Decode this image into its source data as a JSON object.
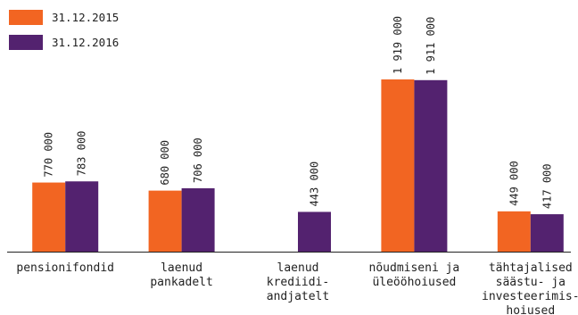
{
  "colors": {
    "series_2015": "#f26522",
    "series_2016": "#53226f",
    "text": "#222222",
    "axis": "#222222"
  },
  "legend": [
    {
      "label": "31.12.2015",
      "color": "#f26522"
    },
    {
      "label": "31.12.2016",
      "color": "#53226f"
    }
  ],
  "chart_data": {
    "type": "bar",
    "categories": [
      [
        "pensionifondid"
      ],
      [
        "laenud",
        "pankadelt"
      ],
      [
        "laenud",
        "krediidi-",
        "andjatelt"
      ],
      [
        "nõudmiseni ja",
        "üleööhoiused"
      ],
      [
        "tähtajalised",
        "säästu- ja",
        "investeerimis-",
        "hoiused"
      ]
    ],
    "series": [
      {
        "name": "31.12.2015",
        "values": [
          770000,
          680000,
          null,
          1919000,
          449000
        ],
        "labels": [
          "770 000",
          "680 000",
          "",
          "1 919 000",
          "449 000"
        ]
      },
      {
        "name": "31.12.2016",
        "values": [
          783000,
          706000,
          443000,
          1911000,
          417000
        ],
        "labels": [
          "783 000",
          "706 000",
          "443 000",
          "1 911 000",
          "417 000"
        ]
      }
    ],
    "ylim": [
      0,
      1919000
    ],
    "grid": false,
    "legend_position": "top-left"
  }
}
